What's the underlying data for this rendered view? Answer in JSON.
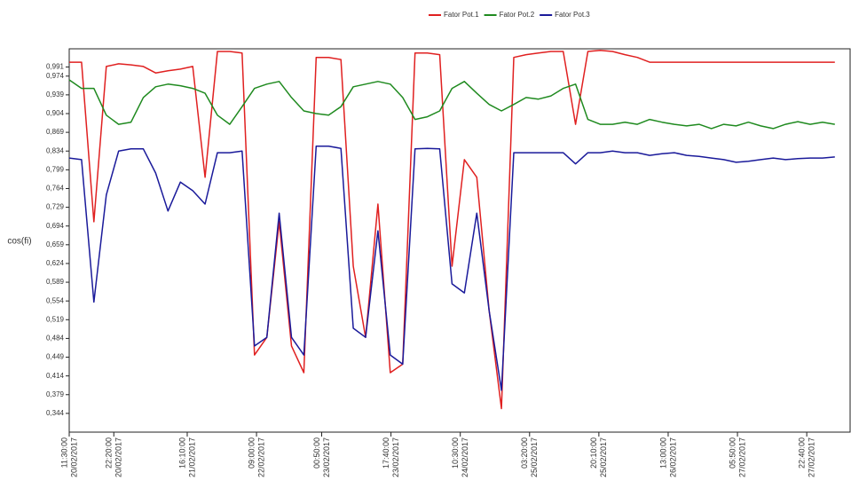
{
  "chart_data": {
    "type": "line",
    "y_label": "cos(fi)",
    "x": [
      "20/02/2017 11:30:00",
      "20/02/2017 14:30:00",
      "20/02/2017 17:30:00",
      "20/02/2017 20:30:00",
      "20/02/2017 23:30:00",
      "21/02/2017 02:30:00",
      "21/02/2017 05:30:00",
      "21/02/2017 08:30:00",
      "21/02/2017 11:30:00",
      "21/02/2017 14:30:00",
      "21/02/2017 17:30:00",
      "21/02/2017 20:30:00",
      "21/02/2017 23:30:00",
      "22/02/2017 02:30:00",
      "22/02/2017 05:30:00",
      "22/02/2017 08:30:00",
      "22/02/2017 11:30:00",
      "22/02/2017 14:30:00",
      "22/02/2017 17:30:00",
      "22/02/2017 20:30:00",
      "22/02/2017 23:30:00",
      "23/02/2017 02:30:00",
      "23/02/2017 05:30:00",
      "23/02/2017 08:30:00",
      "23/02/2017 11:30:00",
      "23/02/2017 14:30:00",
      "23/02/2017 17:30:00",
      "23/02/2017 20:30:00",
      "23/02/2017 23:30:00",
      "24/02/2017 02:30:00",
      "24/02/2017 05:30:00",
      "24/02/2017 08:30:00",
      "24/02/2017 11:30:00",
      "24/02/2017 14:30:00",
      "24/02/2017 17:30:00",
      "24/02/2017 20:30:00",
      "24/02/2017 23:30:00",
      "25/02/2017 02:30:00",
      "25/02/2017 05:30:00",
      "25/02/2017 08:30:00",
      "25/02/2017 11:30:00",
      "25/02/2017 14:30:00",
      "25/02/2017 17:30:00",
      "25/02/2017 20:30:00",
      "25/02/2017 23:30:00",
      "26/02/2017 02:30:00",
      "26/02/2017 05:30:00",
      "26/02/2017 08:30:00",
      "26/02/2017 11:30:00",
      "26/02/2017 14:30:00",
      "26/02/2017 17:30:00",
      "26/02/2017 20:30:00",
      "26/02/2017 23:30:00",
      "27/02/2017 02:30:00",
      "27/02/2017 05:30:00",
      "27/02/2017 08:30:00",
      "27/02/2017 11:30:00",
      "27/02/2017 14:30:00",
      "27/02/2017 17:30:00",
      "27/02/2017 20:30:00",
      "27/02/2017 23:30:00",
      "28/02/2017 02:30:00",
      "28/02/2017 05:30:00"
    ],
    "series": [
      {
        "name": "Fator Pot.1",
        "color": "#e02020",
        "values": [
          1.0,
          1.0,
          0.702,
          0.992,
          0.997,
          0.995,
          0.992,
          0.98,
          0.984,
          0.987,
          0.992,
          0.785,
          1.02,
          1.02,
          1.017,
          0.453,
          0.486,
          0.702,
          0.47,
          0.42,
          1.009,
          1.009,
          1.005,
          0.619,
          0.486,
          0.735,
          0.42,
          0.436,
          1.017,
          1.017,
          1.014,
          0.619,
          0.818,
          0.785,
          0.536,
          0.353,
          1.009,
          1.014,
          1.017,
          1.02,
          1.02,
          0.884,
          1.02,
          1.022,
          1.02,
          1.014,
          1.009,
          1.0,
          1.0,
          1.0,
          1.0,
          1.0,
          1.0,
          1.0,
          1.0,
          1.0,
          1.0,
          1.0,
          1.0,
          1.0,
          1.0,
          1.0,
          1.0
        ]
      },
      {
        "name": "Fator Pot.2",
        "color": "#1f8a1f",
        "values": [
          0.967,
          0.951,
          0.951,
          0.901,
          0.884,
          0.888,
          0.934,
          0.954,
          0.959,
          0.956,
          0.951,
          0.942,
          0.901,
          0.884,
          0.917,
          0.951,
          0.959,
          0.964,
          0.934,
          0.909,
          0.904,
          0.901,
          0.917,
          0.954,
          0.959,
          0.964,
          0.959,
          0.934,
          0.893,
          0.898,
          0.909,
          0.951,
          0.964,
          0.942,
          0.921,
          0.909,
          0.921,
          0.934,
          0.931,
          0.937,
          0.951,
          0.959,
          0.893,
          0.884,
          0.884,
          0.888,
          0.884,
          0.893,
          0.888,
          0.884,
          0.881,
          0.884,
          0.876,
          0.884,
          0.881,
          0.888,
          0.881,
          0.876,
          0.884,
          0.889,
          0.884,
          0.888,
          0.884
        ]
      },
      {
        "name": "Fator Pot.3",
        "color": "#1a1a9a",
        "values": [
          0.821,
          0.818,
          0.552,
          0.752,
          0.834,
          0.838,
          0.838,
          0.793,
          0.722,
          0.776,
          0.76,
          0.735,
          0.831,
          0.831,
          0.834,
          0.47,
          0.486,
          0.718,
          0.486,
          0.453,
          0.843,
          0.843,
          0.839,
          0.503,
          0.486,
          0.685,
          0.453,
          0.436,
          0.838,
          0.839,
          0.838,
          0.586,
          0.569,
          0.718,
          0.536,
          0.387,
          0.831,
          0.831,
          0.831,
          0.831,
          0.831,
          0.81,
          0.831,
          0.831,
          0.834,
          0.831,
          0.831,
          0.826,
          0.829,
          0.831,
          0.826,
          0.824,
          0.821,
          0.818,
          0.813,
          0.815,
          0.818,
          0.821,
          0.818,
          0.82,
          0.821,
          0.821,
          0.823
        ]
      }
    ],
    "xlim": [
      "20/02/2017 11:30:00",
      "28/02/2017 09:12:00"
    ],
    "xticks": [
      {
        "time": "11:30:00",
        "date": "20/02/2017"
      },
      {
        "time": "22:20:00",
        "date": "20/02/2017"
      },
      {
        "time": "16:10:00",
        "date": "21/02/2017"
      },
      {
        "time": "09:00:00",
        "date": "22/02/2017"
      },
      {
        "time": "00:50:00",
        "date": "23/02/2017"
      },
      {
        "time": "17:40:00",
        "date": "23/02/2017"
      },
      {
        "time": "10:30:00",
        "date": "24/02/2017"
      },
      {
        "time": "03:20:00",
        "date": "25/02/2017"
      },
      {
        "time": "20:10:00",
        "date": "25/02/2017"
      },
      {
        "time": "13:00:00",
        "date": "26/02/2017"
      },
      {
        "time": "05:50:00",
        "date": "27/02/2017"
      },
      {
        "time": "22:40:00",
        "date": "27/02/2017"
      }
    ],
    "ylim": [
      0.309,
      1.025
    ],
    "yticks": [
      {
        "value": 0.991,
        "label": "0,991"
      },
      {
        "value": 0.974,
        "label": "0,974"
      },
      {
        "value": 0.939,
        "label": "0,939"
      },
      {
        "value": 0.904,
        "label": "0,904"
      },
      {
        "value": 0.869,
        "label": "0,869"
      },
      {
        "value": 0.834,
        "label": "0,834"
      },
      {
        "value": 0.799,
        "label": "0,799"
      },
      {
        "value": 0.764,
        "label": "0,764"
      },
      {
        "value": 0.729,
        "label": "0,729"
      },
      {
        "value": 0.694,
        "label": "0,694"
      },
      {
        "value": 0.659,
        "label": "0,659"
      },
      {
        "value": 0.624,
        "label": "0,624"
      },
      {
        "value": 0.589,
        "label": "0,589"
      },
      {
        "value": 0.554,
        "label": "0,554"
      },
      {
        "value": 0.519,
        "label": "0,519"
      },
      {
        "value": 0.484,
        "label": "0,484"
      },
      {
        "value": 0.449,
        "label": "0,449"
      },
      {
        "value": 0.414,
        "label": "0,414"
      },
      {
        "value": 0.379,
        "label": "0,379"
      },
      {
        "value": 0.344,
        "label": "0,344"
      }
    ],
    "legend": "top"
  }
}
